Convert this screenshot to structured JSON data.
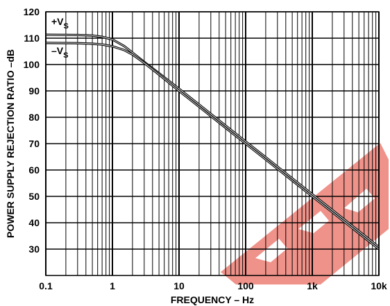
{
  "chart_data": {
    "type": "line",
    "xlabel": "FREQUENCY – Hz",
    "ylabel": "POWER SUPPLY REJECTION RATIO –dB",
    "xscale": "log",
    "xlim": [
      0.1,
      10000
    ],
    "ylim": [
      20,
      120
    ],
    "grid": true,
    "x_ticks": [
      {
        "value": 0.1,
        "label": "0.1"
      },
      {
        "value": 1,
        "label": "1"
      },
      {
        "value": 10,
        "label": "10"
      },
      {
        "value": 100,
        "label": "100"
      },
      {
        "value": 1000,
        "label": "1k"
      },
      {
        "value": 10000,
        "label": "10k"
      }
    ],
    "y_ticks": [
      {
        "value": 120,
        "label": "120"
      },
      {
        "value": 110,
        "label": "110"
      },
      {
        "value": 100,
        "label": "100"
      },
      {
        "value": 90,
        "label": "90"
      },
      {
        "value": 80,
        "label": "80"
      },
      {
        "value": 70,
        "label": "70"
      },
      {
        "value": 60,
        "label": "60"
      },
      {
        "value": 50,
        "label": "50"
      },
      {
        "value": 40,
        "label": "40"
      },
      {
        "value": 30,
        "label": "30"
      }
    ],
    "series": [
      {
        "name": "+V",
        "name_sub": "S",
        "points": [
          [
            0.1,
            111.3
          ],
          [
            0.3,
            111.2
          ],
          [
            0.5,
            111.0
          ],
          [
            0.7,
            110.5
          ],
          [
            1,
            109.5
          ],
          [
            1.5,
            107.0
          ],
          [
            2,
            104.5
          ],
          [
            3,
            101.0
          ],
          [
            5,
            96.7
          ],
          [
            10,
            90.8
          ],
          [
            20,
            84.8
          ],
          [
            50,
            76.8
          ],
          [
            100,
            70.8
          ],
          [
            200,
            64.8
          ],
          [
            500,
            56.8
          ],
          [
            1000,
            50.8
          ],
          [
            2000,
            44.8
          ],
          [
            5000,
            36.8
          ],
          [
            10000,
            30.8
          ]
        ]
      },
      {
        "name": "–V",
        "name_sub": "S",
        "points": [
          [
            0.1,
            108.2
          ],
          [
            0.3,
            108.1
          ],
          [
            0.5,
            107.9
          ],
          [
            0.7,
            107.6
          ],
          [
            1,
            106.9
          ],
          [
            1.5,
            105.5
          ],
          [
            2,
            103.8
          ],
          [
            3,
            100.6
          ],
          [
            5,
            96.2
          ],
          [
            10,
            90.0
          ],
          [
            20,
            84.0
          ],
          [
            50,
            76.0
          ],
          [
            100,
            70.0
          ],
          [
            200,
            64.0
          ],
          [
            500,
            56.0
          ],
          [
            1000,
            50.0
          ],
          [
            2000,
            44.0
          ],
          [
            5000,
            36.0
          ],
          [
            10000,
            30.0
          ]
        ]
      }
    ]
  }
}
